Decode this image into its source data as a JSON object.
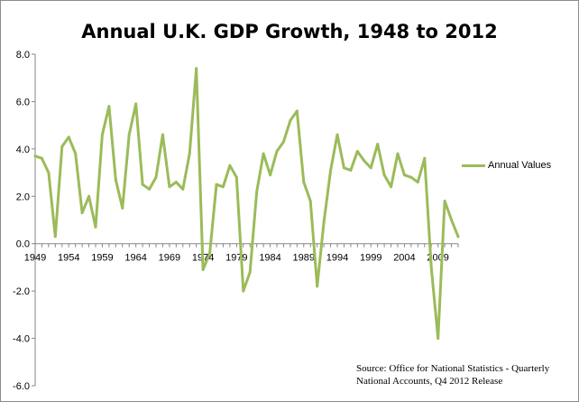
{
  "chart_data": {
    "type": "line",
    "title": "Annual U.K. GDP Growth, 1948 to 2012",
    "xlabel": "",
    "ylabel": "",
    "xlim": [
      1949,
      2012
    ],
    "ylim": [
      -6.0,
      8.0
    ],
    "y_ticks": [
      "8.0",
      "6.0",
      "4.0",
      "2.0",
      "0.0",
      "-2.0",
      "-4.0",
      "-6.0"
    ],
    "x_ticks": [
      "1949",
      "1954",
      "1959",
      "1964",
      "1969",
      "1974",
      "1979",
      "1984",
      "1989",
      "1994",
      "1999",
      "2004",
      "2009"
    ],
    "grid": false,
    "legend_position": "right",
    "series": [
      {
        "name": "Annual Values",
        "color": "#9bbb59",
        "x": [
          1949,
          1950,
          1951,
          1952,
          1953,
          1954,
          1955,
          1956,
          1957,
          1958,
          1959,
          1960,
          1961,
          1962,
          1963,
          1964,
          1965,
          1966,
          1967,
          1968,
          1969,
          1970,
          1971,
          1972,
          1973,
          1974,
          1975,
          1976,
          1977,
          1978,
          1979,
          1980,
          1981,
          1982,
          1983,
          1984,
          1985,
          1986,
          1987,
          1988,
          1989,
          1990,
          1991,
          1992,
          1993,
          1994,
          1995,
          1996,
          1997,
          1998,
          1999,
          2000,
          2001,
          2002,
          2003,
          2004,
          2005,
          2006,
          2007,
          2008,
          2009,
          2010,
          2011,
          2012
        ],
        "values": [
          3.7,
          3.6,
          3.0,
          0.3,
          4.1,
          4.5,
          3.8,
          1.3,
          2.0,
          0.7,
          4.6,
          5.8,
          2.7,
          1.5,
          4.6,
          5.9,
          2.5,
          2.3,
          2.8,
          4.6,
          2.4,
          2.6,
          2.3,
          3.8,
          7.4,
          -1.1,
          -0.4,
          2.5,
          2.4,
          3.3,
          2.8,
          -2.0,
          -1.2,
          2.2,
          3.8,
          2.9,
          3.9,
          4.3,
          5.2,
          5.6,
          2.6,
          1.8,
          -1.8,
          0.9,
          3.1,
          4.6,
          3.2,
          3.1,
          3.9,
          3.5,
          3.2,
          4.2,
          2.9,
          2.4,
          3.8,
          2.9,
          2.8,
          2.6,
          3.6,
          -1.0,
          -4.0,
          1.8,
          1.0,
          0.3
        ]
      }
    ],
    "source_lines": [
      "Source: Office for National Statistics - Quarterly",
      "National Accounts, Q4 2012 Release"
    ]
  }
}
